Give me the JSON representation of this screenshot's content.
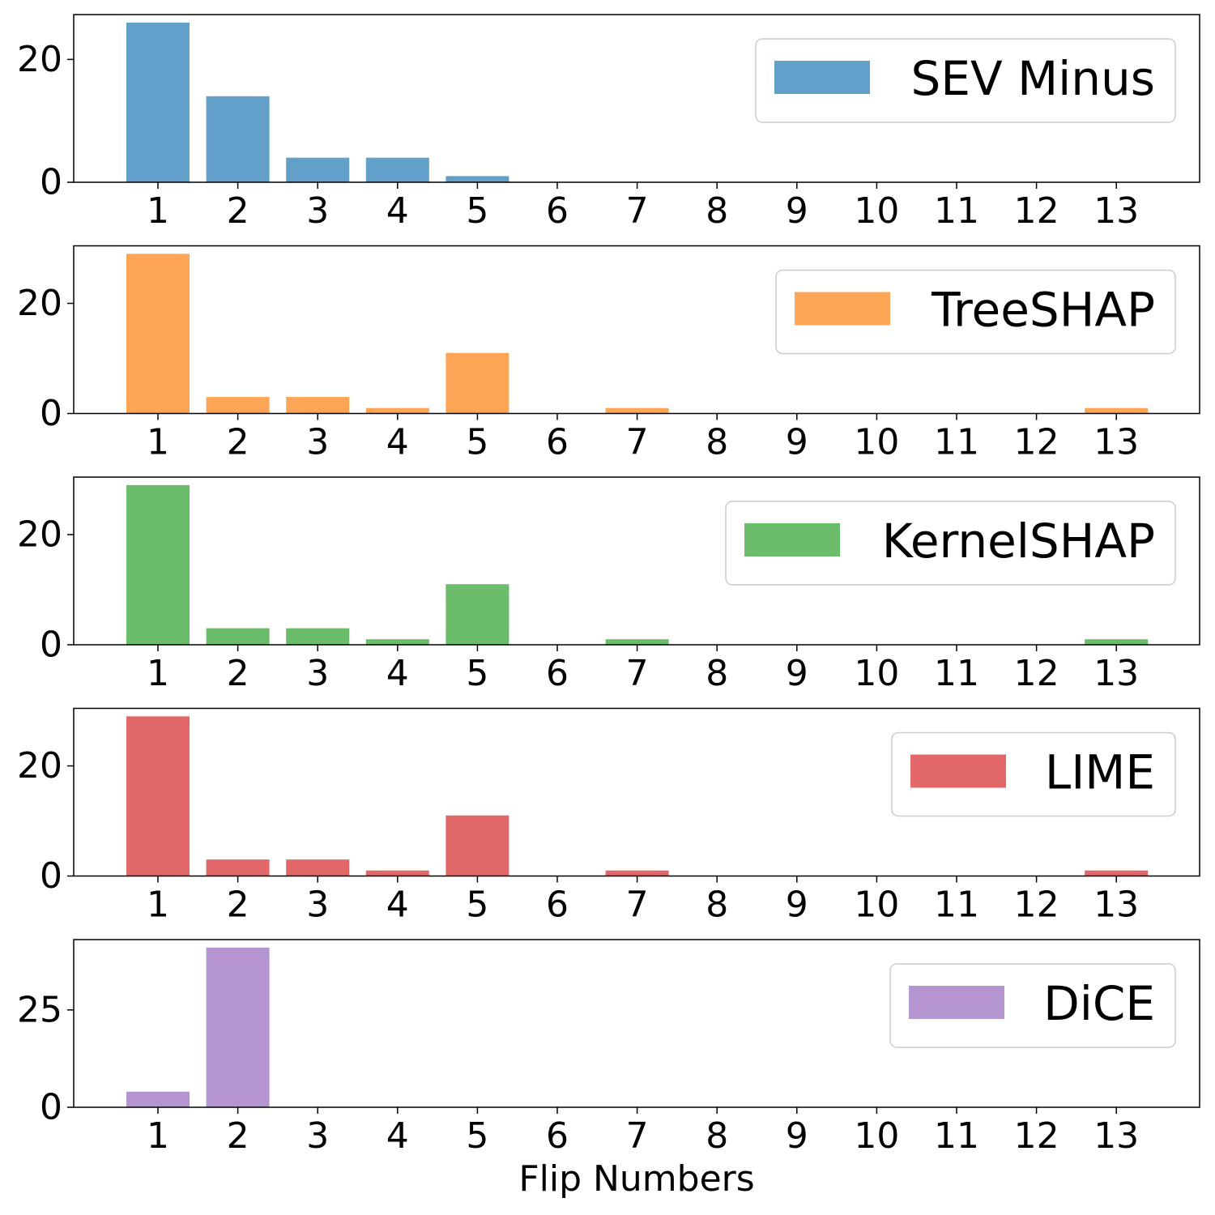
{
  "chart_data": [
    {
      "type": "bar",
      "series_name": "SEV Minus",
      "color": "#1f77b4",
      "categories": [
        "1",
        "2",
        "3",
        "4",
        "5",
        "6",
        "7",
        "8",
        "9",
        "10",
        "11",
        "12",
        "13"
      ],
      "values": [
        26,
        14,
        4,
        4,
        1,
        0,
        0,
        0,
        0,
        0,
        0,
        0,
        0
      ],
      "yticks": [
        0,
        20
      ],
      "ylim": [
        0,
        27.3
      ],
      "legend": "top-right"
    },
    {
      "type": "bar",
      "series_name": "TreeSHAP",
      "color": "#ff7f0e",
      "categories": [
        "1",
        "2",
        "3",
        "4",
        "5",
        "6",
        "7",
        "8",
        "9",
        "10",
        "11",
        "12",
        "13"
      ],
      "values": [
        29,
        3,
        3,
        1,
        11,
        0,
        1,
        0,
        0,
        0,
        0,
        0,
        1
      ],
      "yticks": [
        0,
        20
      ],
      "ylim": [
        0,
        30.45
      ],
      "legend": "top-right"
    },
    {
      "type": "bar",
      "series_name": "KernelSHAP",
      "color": "#2ca02c",
      "categories": [
        "1",
        "2",
        "3",
        "4",
        "5",
        "6",
        "7",
        "8",
        "9",
        "10",
        "11",
        "12",
        "13"
      ],
      "values": [
        29,
        3,
        3,
        1,
        11,
        0,
        1,
        0,
        0,
        0,
        0,
        0,
        1
      ],
      "yticks": [
        0,
        20
      ],
      "ylim": [
        0,
        30.45
      ],
      "legend": "top-right"
    },
    {
      "type": "bar",
      "series_name": "LIME",
      "color": "#d62728",
      "categories": [
        "1",
        "2",
        "3",
        "4",
        "5",
        "6",
        "7",
        "8",
        "9",
        "10",
        "11",
        "12",
        "13"
      ],
      "values": [
        29,
        3,
        3,
        1,
        11,
        0,
        1,
        0,
        0,
        0,
        0,
        0,
        1
      ],
      "yticks": [
        0,
        20
      ],
      "ylim": [
        0,
        30.45
      ],
      "legend": "top-right"
    },
    {
      "type": "bar",
      "series_name": "DiCE",
      "color": "#9467bd",
      "categories": [
        "1",
        "2",
        "3",
        "4",
        "5",
        "6",
        "7",
        "8",
        "9",
        "10",
        "11",
        "12",
        "13"
      ],
      "values": [
        4,
        41,
        0,
        0,
        0,
        0,
        0,
        0,
        0,
        0,
        0,
        0,
        0
      ],
      "yticks": [
        0,
        25
      ],
      "ylim": [
        0,
        43.05
      ],
      "legend": "top-right",
      "xlabel": "Flip Numbers"
    }
  ]
}
